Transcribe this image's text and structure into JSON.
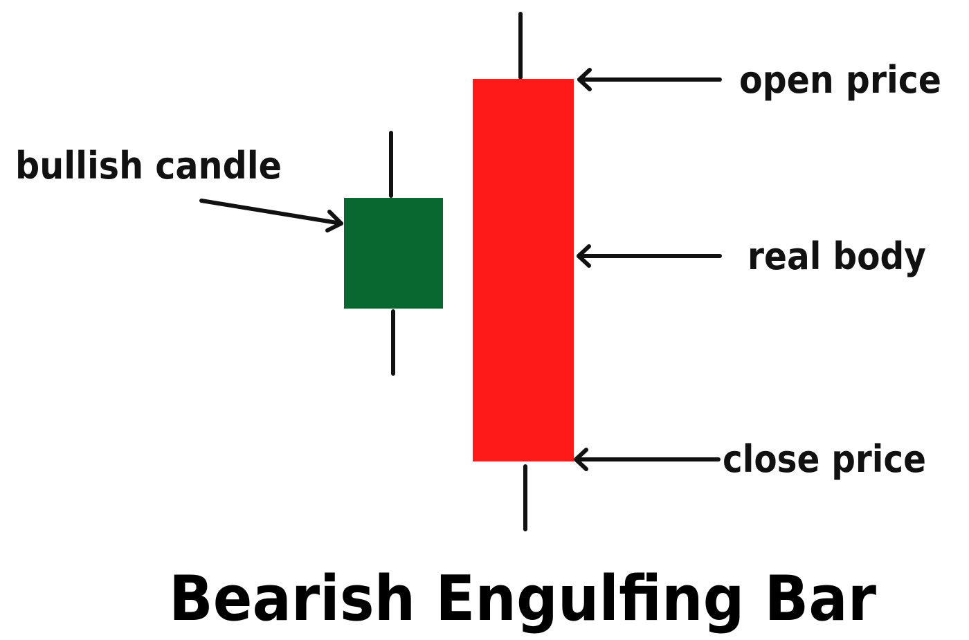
{
  "title": "Bearish Engulfing Bar",
  "labels": {
    "bullish_candle": "bullish candle",
    "open_price": "open price",
    "real_body": "real body",
    "close_price": "close price"
  },
  "colors": {
    "bullish": "#08682f",
    "bearish": "#ff1a1a",
    "ink": "#111111"
  }
}
